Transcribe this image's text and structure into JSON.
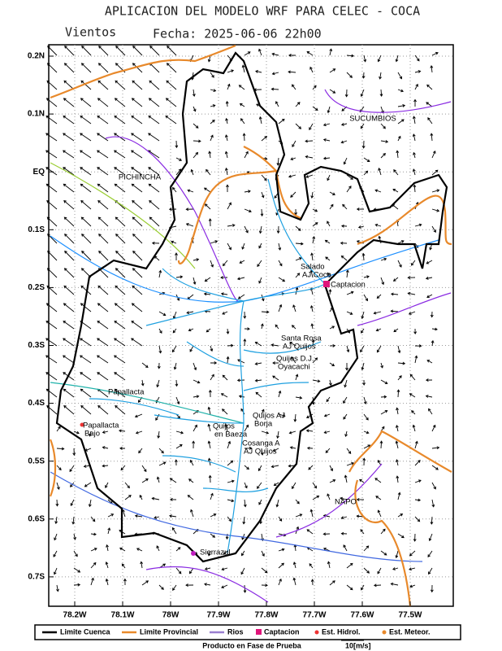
{
  "header": {
    "title": "APLICACION DEL MODELO WRF PARA CELEC - COCA",
    "variable": "Vientos",
    "date": "Fecha: 2025-06-06 22h00"
  },
  "axes": {
    "lat_labels": [
      "0.2N",
      "0.1N",
      "EQ",
      "0.1S",
      "0.2S",
      "0.3S",
      "0.4S",
      "0.5S",
      "0.6S",
      "0.7S"
    ],
    "lon_labels": [
      "78.2W",
      "78.1W",
      "78W",
      "77.9W",
      "77.8W",
      "77.7W",
      "77.6W",
      "77.5W"
    ]
  },
  "places": [
    {
      "lines": [
        "SUCUMBIOS"
      ]
    },
    {
      "lines": [
        "PICHINCHA"
      ]
    },
    {
      "lines": [
        "Salado",
        "AJ Coca"
      ]
    },
    {
      "lines": [
        "Captacion"
      ]
    },
    {
      "lines": [
        "Santa Rosa",
        "AJ Quijos"
      ]
    },
    {
      "lines": [
        "Quijos D.J.",
        "Oyacachi"
      ]
    },
    {
      "lines": [
        "Papallacta"
      ]
    },
    {
      "lines": [
        "Papallacta",
        "Bajo"
      ]
    },
    {
      "lines": [
        "Quijos AJ",
        "Borja"
      ]
    },
    {
      "lines": [
        "Quijos",
        "en Baeza"
      ]
    },
    {
      "lines": [
        "Cosanga A",
        "AJ Quijos"
      ]
    },
    {
      "lines": [
        "NAPO"
      ]
    },
    {
      "lines": [
        "Sierrazul"
      ]
    }
  ],
  "legend": [
    "Limite Cuenca",
    "Limite Provincial",
    "Rios",
    "Captacion",
    "Est. Hidrol.",
    "Est. Meteor."
  ],
  "footer": {
    "note": "Producto en Fase de Prueba",
    "scale": "10[m/s]"
  }
}
